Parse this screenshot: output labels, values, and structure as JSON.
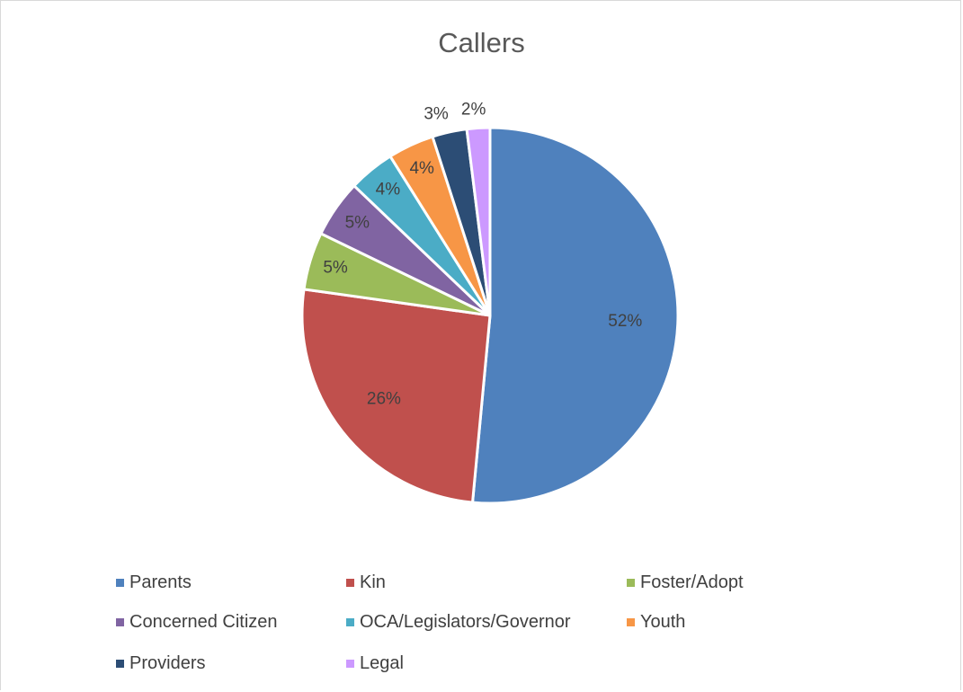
{
  "chart_data": {
    "type": "pie",
    "title": "Callers",
    "labels": [
      "Parents",
      "Kin",
      "Foster/Adopt",
      "Concerned Citizen",
      "OCA/Legislators/Governor",
      "Youth",
      "Providers",
      "Legal"
    ],
    "values": [
      52,
      26,
      5,
      5,
      4,
      4,
      3,
      2
    ],
    "data_labels": [
      "52%",
      "26%",
      "5%",
      "5%",
      "4%",
      "4%",
      "3%",
      "2%"
    ],
    "colors": [
      "#4f81bd",
      "#c0504d",
      "#9bbb59",
      "#8064a2",
      "#4bacc6",
      "#f79646",
      "#2c4d75",
      "#cc99ff"
    ],
    "legend_position": "bottom",
    "start_angle": "12 o'clock, clockwise"
  }
}
